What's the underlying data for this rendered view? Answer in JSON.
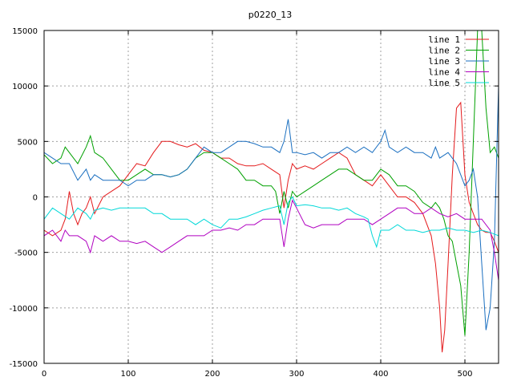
{
  "chart_data": {
    "type": "line",
    "title": "p0220_13",
    "xlabel": "",
    "ylabel": "",
    "xlim": [
      0,
      540
    ],
    "ylim": [
      -15000,
      15000
    ],
    "x_ticks": [
      0,
      100,
      200,
      300,
      400,
      500
    ],
    "y_ticks": [
      -15000,
      -10000,
      -5000,
      0,
      5000,
      10000,
      15000
    ],
    "grid": true,
    "legend_position": "top-right",
    "series": [
      {
        "name": "line 1",
        "color": "#e41a1c",
        "x": [
          0,
          10,
          20,
          25,
          30,
          35,
          40,
          45,
          50,
          55,
          60,
          70,
          80,
          90,
          100,
          110,
          120,
          130,
          140,
          150,
          160,
          170,
          180,
          190,
          200,
          210,
          220,
          230,
          240,
          250,
          260,
          270,
          280,
          285,
          290,
          295,
          300,
          310,
          320,
          330,
          340,
          350,
          360,
          370,
          380,
          390,
          400,
          410,
          420,
          430,
          440,
          450,
          460,
          465,
          470,
          473,
          476,
          480,
          485,
          490,
          495,
          500,
          505,
          510,
          515,
          520,
          525,
          530,
          535,
          540
        ],
        "y": [
          -3000,
          -3500,
          -3000,
          -2000,
          500,
          -1500,
          -2500,
          -1500,
          -1000,
          0,
          -1500,
          0,
          500,
          1000,
          2000,
          3000,
          2800,
          4000,
          5000,
          5000,
          4700,
          4500,
          4800,
          4200,
          4000,
          3500,
          3500,
          3000,
          2800,
          2800,
          3000,
          2500,
          2000,
          -1000,
          1500,
          3000,
          2500,
          2800,
          2500,
          3000,
          3500,
          4000,
          3500,
          2000,
          1500,
          1000,
          2000,
          1000,
          0,
          0,
          -500,
          -1500,
          -3500,
          -6000,
          -10000,
          -14000,
          -12000,
          -6000,
          2000,
          8000,
          8500,
          2000,
          -500,
          -1500,
          -2500,
          -3000,
          -3200,
          -3200,
          -4000,
          -5000
        ]
      },
      {
        "name": "line 2",
        "color": "#00a000",
        "x": [
          0,
          10,
          20,
          25,
          30,
          40,
          50,
          55,
          60,
          70,
          80,
          90,
          100,
          110,
          120,
          130,
          140,
          150,
          160,
          170,
          180,
          190,
          200,
          210,
          220,
          230,
          240,
          250,
          260,
          270,
          275,
          280,
          285,
          290,
          295,
          300,
          310,
          320,
          330,
          340,
          350,
          360,
          370,
          380,
          390,
          400,
          410,
          420,
          430,
          440,
          450,
          460,
          465,
          470,
          475,
          480,
          485,
          490,
          495,
          500,
          505,
          510,
          515,
          520,
          525,
          530,
          535,
          540
        ],
        "y": [
          3800,
          3000,
          3500,
          4500,
          4000,
          3000,
          4500,
          5500,
          4000,
          3500,
          2500,
          1500,
          1500,
          2000,
          2500,
          2000,
          2000,
          1800,
          2000,
          2500,
          3500,
          4000,
          4000,
          3500,
          3000,
          2500,
          1500,
          1500,
          1000,
          1000,
          500,
          -1500,
          500,
          -1000,
          500,
          0,
          500,
          1000,
          1500,
          2000,
          2500,
          2500,
          2000,
          1500,
          1500,
          2500,
          2000,
          1000,
          1000,
          500,
          -500,
          -1000,
          -500,
          -1000,
          -2000,
          -3500,
          -4000,
          -6000,
          -8000,
          -12500,
          -5000,
          5000,
          15000,
          15000,
          8000,
          4000,
          4500,
          3500
        ]
      },
      {
        "name": "line 3",
        "color": "#1a6fc0",
        "x": [
          0,
          10,
          20,
          30,
          40,
          50,
          55,
          60,
          70,
          80,
          90,
          100,
          110,
          120,
          130,
          140,
          150,
          160,
          170,
          180,
          190,
          200,
          210,
          220,
          230,
          240,
          250,
          260,
          270,
          280,
          285,
          290,
          295,
          300,
          310,
          320,
          330,
          340,
          350,
          360,
          370,
          380,
          390,
          400,
          405,
          410,
          420,
          430,
          440,
          450,
          460,
          465,
          470,
          480,
          490,
          500,
          505,
          510,
          515,
          520,
          525,
          530,
          535,
          540
        ],
        "y": [
          4000,
          3500,
          3000,
          3000,
          1500,
          2500,
          1500,
          2000,
          1500,
          1500,
          1500,
          1000,
          1500,
          1500,
          2000,
          2000,
          1800,
          2000,
          2500,
          3500,
          4500,
          4000,
          4000,
          4500,
          5000,
          5000,
          4800,
          4500,
          4500,
          4000,
          5000,
          7000,
          4000,
          4000,
          3800,
          4000,
          3500,
          4000,
          4000,
          4500,
          4000,
          4500,
          4000,
          5000,
          6000,
          4500,
          4000,
          4500,
          4000,
          4000,
          3500,
          4500,
          3500,
          4000,
          3000,
          1000,
          1500,
          2500,
          0,
          -6000,
          -12000,
          -10000,
          -4000,
          10000
        ]
      },
      {
        "name": "line 4",
        "color": "#b000c0",
        "x": [
          0,
          10,
          20,
          25,
          30,
          40,
          50,
          55,
          60,
          70,
          80,
          90,
          100,
          110,
          120,
          130,
          140,
          150,
          160,
          170,
          180,
          190,
          200,
          210,
          220,
          230,
          240,
          250,
          260,
          270,
          280,
          285,
          290,
          295,
          300,
          310,
          320,
          330,
          340,
          350,
          360,
          370,
          380,
          390,
          400,
          410,
          420,
          430,
          440,
          450,
          460,
          470,
          480,
          490,
          500,
          510,
          520,
          530,
          535,
          540
        ],
        "y": [
          -3500,
          -3000,
          -4000,
          -3000,
          -3500,
          -3500,
          -4000,
          -5000,
          -3500,
          -4000,
          -3500,
          -4000,
          -4000,
          -4200,
          -4000,
          -4500,
          -5000,
          -4500,
          -4000,
          -3500,
          -3500,
          -3500,
          -3000,
          -3000,
          -2800,
          -3000,
          -2500,
          -2500,
          -2000,
          -2000,
          -2000,
          -4500,
          -2000,
          -300,
          -1000,
          -2500,
          -2800,
          -2500,
          -2500,
          -2500,
          -2000,
          -2000,
          -2000,
          -2500,
          -2000,
          -1500,
          -1000,
          -1000,
          -1500,
          -1500,
          -1000,
          -1500,
          -1800,
          -1500,
          -2000,
          -2000,
          -2000,
          -3000,
          -5000,
          -7500
        ]
      },
      {
        "name": "line 5",
        "color": "#00d8d8",
        "x": [
          0,
          10,
          20,
          30,
          40,
          50,
          55,
          60,
          70,
          80,
          90,
          100,
          110,
          120,
          130,
          140,
          150,
          160,
          170,
          180,
          190,
          200,
          210,
          220,
          230,
          240,
          250,
          260,
          270,
          280,
          285,
          290,
          295,
          300,
          310,
          320,
          330,
          340,
          350,
          360,
          370,
          380,
          385,
          390,
          395,
          400,
          410,
          420,
          430,
          440,
          450,
          460,
          470,
          480,
          490,
          500,
          510,
          520,
          530,
          540
        ],
        "y": [
          -2000,
          -1000,
          -1500,
          -2000,
          -1000,
          -1500,
          -2000,
          -1200,
          -1000,
          -1200,
          -1000,
          -1000,
          -1000,
          -1000,
          -1500,
          -1500,
          -2000,
          -2000,
          -2000,
          -2500,
          -2000,
          -2500,
          -2800,
          -2000,
          -2000,
          -1800,
          -1500,
          -1200,
          -1000,
          -800,
          -2500,
          -500,
          0,
          -800,
          -700,
          -800,
          -1000,
          -1000,
          -1200,
          -1000,
          -1500,
          -1800,
          -2000,
          -3500,
          -4500,
          -3000,
          -3000,
          -2500,
          -3000,
          -3000,
          -3200,
          -3000,
          -3000,
          -2800,
          -3000,
          -3000,
          -3200,
          -3000,
          -3200,
          -3500
        ]
      }
    ]
  }
}
